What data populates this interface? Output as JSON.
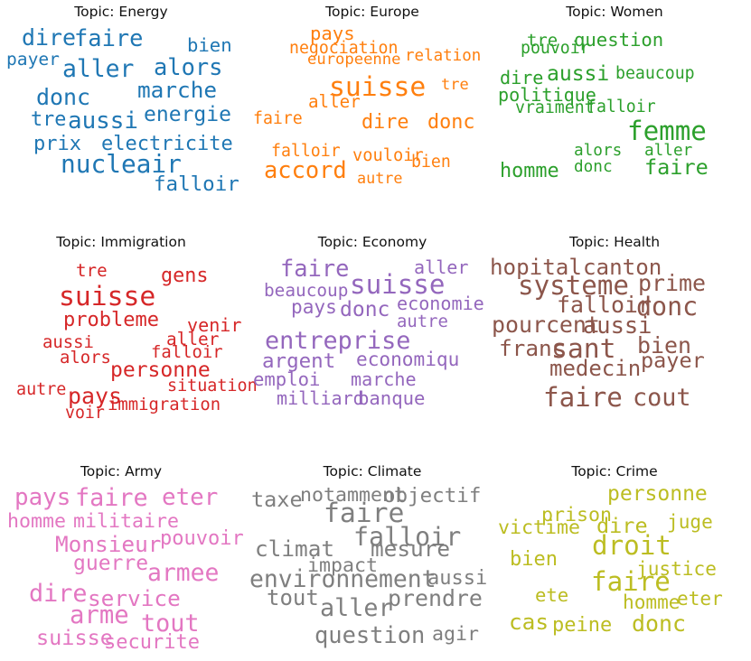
{
  "chart_data": {
    "type": "wordcloud",
    "panels": [
      {
        "title": "Topic: Energy",
        "color": "#1f77b4",
        "words": [
          {
            "text": "dire",
            "weight": 0.58
          },
          {
            "text": "faire",
            "weight": 0.6
          },
          {
            "text": "bien",
            "weight": 0.4
          },
          {
            "text": "payer",
            "weight": 0.36
          },
          {
            "text": "aller",
            "weight": 0.64
          },
          {
            "text": "alors",
            "weight": 0.6
          },
          {
            "text": "donc",
            "weight": 0.58
          },
          {
            "text": "marche",
            "weight": 0.56
          },
          {
            "text": "tre",
            "weight": 0.45
          },
          {
            "text": "aussi",
            "weight": 0.62
          },
          {
            "text": "energie",
            "weight": 0.5
          },
          {
            "text": "prix",
            "weight": 0.46
          },
          {
            "text": "electricite",
            "weight": 0.46
          },
          {
            "text": "nucleair",
            "weight": 0.7
          },
          {
            "text": "falloir",
            "weight": 0.48
          }
        ]
      },
      {
        "title": "Topic: Europe",
        "color": "#ff7f0e",
        "words": [
          {
            "text": "pays",
            "weight": 0.4
          },
          {
            "text": "negociation",
            "weight": 0.3
          },
          {
            "text": "europeenne",
            "weight": 0.26
          },
          {
            "text": "relation",
            "weight": 0.27
          },
          {
            "text": "suisse",
            "weight": 0.78
          },
          {
            "text": "tre",
            "weight": 0.25
          },
          {
            "text": "aller",
            "weight": 0.34
          },
          {
            "text": "faire",
            "weight": 0.3
          },
          {
            "text": "dire",
            "weight": 0.45
          },
          {
            "text": "donc",
            "weight": 0.45
          },
          {
            "text": "falloir",
            "weight": 0.3
          },
          {
            "text": "vouloir",
            "weight": 0.32
          },
          {
            "text": "bien",
            "weight": 0.3
          },
          {
            "text": "accord",
            "weight": 0.6
          },
          {
            "text": "autre",
            "weight": 0.24
          }
        ]
      },
      {
        "title": "Topic: Women",
        "color": "#2ca02c",
        "words": [
          {
            "text": "tre",
            "weight": 0.33
          },
          {
            "text": "pouvoir",
            "weight": 0.3
          },
          {
            "text": "question",
            "weight": 0.4
          },
          {
            "text": "dire",
            "weight": 0.38
          },
          {
            "text": "aussi",
            "weight": 0.5
          },
          {
            "text": "beaucoup",
            "weight": 0.3
          },
          {
            "text": "politique",
            "weight": 0.38
          },
          {
            "text": "vraiment",
            "weight": 0.3
          },
          {
            "text": "falloir",
            "weight": 0.3
          },
          {
            "text": "femme",
            "weight": 0.76
          },
          {
            "text": "alors",
            "weight": 0.28
          },
          {
            "text": "aller",
            "weight": 0.28
          },
          {
            "text": "donc",
            "weight": 0.28
          },
          {
            "text": "homme",
            "weight": 0.45
          },
          {
            "text": "faire",
            "weight": 0.52
          }
        ]
      },
      {
        "title": "Topic: Immigration",
        "color": "#d62728",
        "words": [
          {
            "text": "tre",
            "weight": 0.34
          },
          {
            "text": "gens",
            "weight": 0.45
          },
          {
            "text": "suisse",
            "weight": 0.78
          },
          {
            "text": "probleme",
            "weight": 0.46
          },
          {
            "text": "venir",
            "weight": 0.38
          },
          {
            "text": "aussi",
            "weight": 0.33
          },
          {
            "text": "aller",
            "weight": 0.35
          },
          {
            "text": "falloir",
            "weight": 0.33
          },
          {
            "text": "alors",
            "weight": 0.33
          },
          {
            "text": "personne",
            "weight": 0.5
          },
          {
            "text": "situation",
            "weight": 0.31
          },
          {
            "text": "autre",
            "weight": 0.31
          },
          {
            "text": "pays",
            "weight": 0.58
          },
          {
            "text": "immigration",
            "weight": 0.33
          },
          {
            "text": "voir",
            "weight": 0.3
          }
        ]
      },
      {
        "title": "Topic: Economy",
        "color": "#9467bd",
        "words": [
          {
            "text": "faire",
            "weight": 0.6
          },
          {
            "text": "aller",
            "weight": 0.38
          },
          {
            "text": "beaucoup",
            "weight": 0.35
          },
          {
            "text": "suisse",
            "weight": 0.76
          },
          {
            "text": "pays",
            "weight": 0.42
          },
          {
            "text": "donc",
            "weight": 0.5
          },
          {
            "text": "economie",
            "weight": 0.38
          },
          {
            "text": "autre",
            "weight": 0.33
          },
          {
            "text": "entreprise",
            "weight": 0.66
          },
          {
            "text": "argent",
            "weight": 0.48
          },
          {
            "text": "economiqu",
            "weight": 0.42
          },
          {
            "text": "emploi",
            "weight": 0.4
          },
          {
            "text": "marche",
            "weight": 0.38
          },
          {
            "text": "milliard",
            "weight": 0.38
          },
          {
            "text": "banque",
            "weight": 0.4
          }
        ]
      },
      {
        "title": "Topic: Health",
        "color": "#8c564b",
        "words": [
          {
            "text": "hopital",
            "weight": 0.55
          },
          {
            "text": "canton",
            "weight": 0.55
          },
          {
            "text": "systeme",
            "weight": 0.76
          },
          {
            "text": "prime",
            "weight": 0.58
          },
          {
            "text": "falloir",
            "weight": 0.58
          },
          {
            "text": "donc",
            "weight": 0.72
          },
          {
            "text": "pourcent",
            "weight": 0.58
          },
          {
            "text": "aussi",
            "weight": 0.6
          },
          {
            "text": "franc",
            "weight": 0.56
          },
          {
            "text": "sant",
            "weight": 0.78
          },
          {
            "text": "bien",
            "weight": 0.58
          },
          {
            "text": "payer",
            "weight": 0.52
          },
          {
            "text": "medecin",
            "weight": 0.54
          },
          {
            "text": "faire",
            "weight": 0.76
          },
          {
            "text": "cout",
            "weight": 0.66
          }
        ]
      },
      {
        "title": "Topic: Army",
        "color": "#e377c2",
        "words": [
          {
            "text": "pays",
            "weight": 0.62
          },
          {
            "text": "faire",
            "weight": 0.66
          },
          {
            "text": "eter",
            "weight": 0.62
          },
          {
            "text": "homme",
            "weight": 0.44
          },
          {
            "text": "militaire",
            "weight": 0.44
          },
          {
            "text": "Monsieur",
            "weight": 0.56
          },
          {
            "text": "pouvoir",
            "weight": 0.46
          },
          {
            "text": "guerre",
            "weight": 0.5
          },
          {
            "text": "armee",
            "weight": 0.64
          },
          {
            "text": "dire",
            "weight": 0.66
          },
          {
            "text": "service",
            "weight": 0.56
          },
          {
            "text": "arme",
            "weight": 0.68
          },
          {
            "text": "tout",
            "weight": 0.66
          },
          {
            "text": "suisse",
            "weight": 0.52
          },
          {
            "text": "securite",
            "weight": 0.46
          }
        ]
      },
      {
        "title": "Topic: Climate",
        "color": "#7f7f7f",
        "words": [
          {
            "text": "taxe",
            "weight": 0.52
          },
          {
            "text": "notamment",
            "weight": 0.44
          },
          {
            "text": "objectif",
            "weight": 0.48
          },
          {
            "text": "faire",
            "weight": 0.78
          },
          {
            "text": "falloir",
            "weight": 0.72
          },
          {
            "text": "climat",
            "weight": 0.56
          },
          {
            "text": "mesure",
            "weight": 0.56
          },
          {
            "text": "impact",
            "weight": 0.44
          },
          {
            "text": "environnement",
            "weight": 0.64
          },
          {
            "text": "aussi",
            "weight": 0.46
          },
          {
            "text": "tout",
            "weight": 0.54
          },
          {
            "text": "prendre",
            "weight": 0.58
          },
          {
            "text": "aller",
            "weight": 0.66
          },
          {
            "text": "question",
            "weight": 0.6
          },
          {
            "text": "agir",
            "weight": 0.44
          }
        ]
      },
      {
        "title": "Topic: Crime",
        "color": "#bcbd22",
        "words": [
          {
            "text": "personne",
            "weight": 0.5
          },
          {
            "text": "prison",
            "weight": 0.44
          },
          {
            "text": "victime",
            "weight": 0.44
          },
          {
            "text": "dire",
            "weight": 0.52
          },
          {
            "text": "juge",
            "weight": 0.42
          },
          {
            "text": "droit",
            "weight": 0.76
          },
          {
            "text": "bien",
            "weight": 0.46
          },
          {
            "text": "justice",
            "weight": 0.42
          },
          {
            "text": "ete",
            "weight": 0.4
          },
          {
            "text": "faire",
            "weight": 0.76
          },
          {
            "text": "homme",
            "weight": 0.42
          },
          {
            "text": "eter",
            "weight": 0.42
          },
          {
            "text": "cas",
            "weight": 0.56
          },
          {
            "text": "peine",
            "weight": 0.46
          },
          {
            "text": "donc",
            "weight": 0.58
          }
        ]
      }
    ]
  }
}
